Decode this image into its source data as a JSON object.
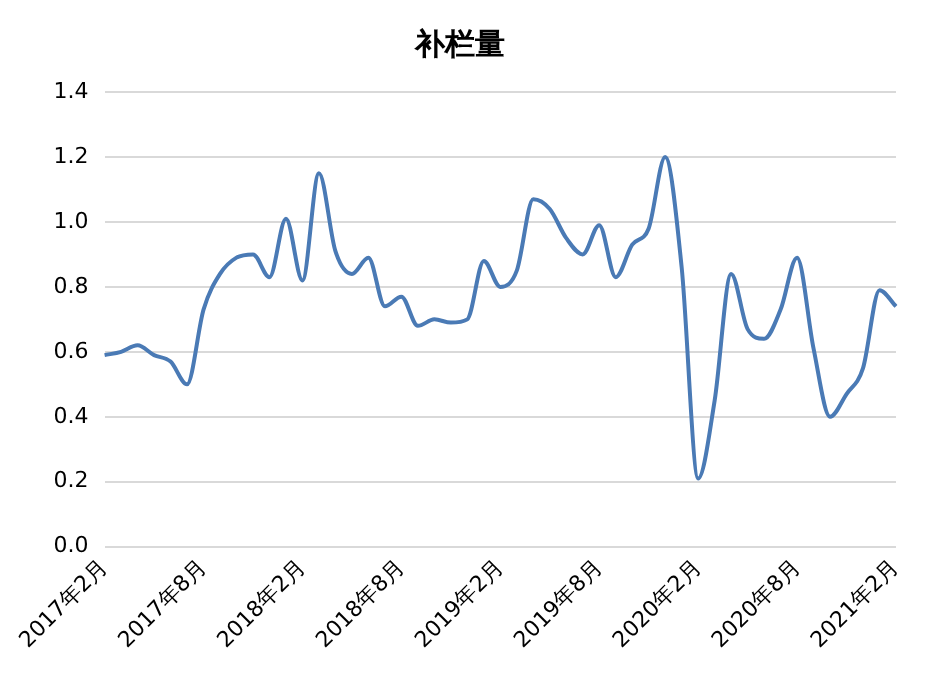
{
  "chart_data": {
    "type": "line",
    "title": "补栏量",
    "categories": [
      "2017年2月",
      null,
      null,
      null,
      null,
      null,
      "2017年8月",
      null,
      null,
      null,
      null,
      null,
      "2018年2月",
      null,
      null,
      null,
      null,
      null,
      "2018年8月",
      null,
      null,
      null,
      null,
      null,
      "2019年2月",
      null,
      null,
      null,
      null,
      null,
      "2019年8月",
      null,
      null,
      null,
      null,
      null,
      "2020年2月",
      null,
      null,
      null,
      null,
      null,
      "2020年8月",
      null,
      null,
      null,
      null,
      null,
      "2021年2月"
    ],
    "series": [
      {
        "color": "#4a7ab5",
        "values": [
          0.59,
          0.6,
          0.62,
          0.59,
          0.57,
          0.5,
          0.73,
          0.84,
          0.89,
          0.9,
          0.83,
          1.01,
          0.82,
          1.15,
          0.91,
          0.84,
          0.89,
          0.74,
          0.77,
          0.68,
          0.7,
          0.69,
          0.7,
          0.88,
          0.8,
          0.85,
          1.07,
          1.04,
          0.95,
          0.9,
          0.99,
          0.83,
          0.93,
          0.98,
          1.2,
          0.86,
          0.21,
          0.45,
          0.84,
          0.67,
          0.64,
          0.73,
          0.89,
          0.61,
          0.4,
          0.47,
          0.55,
          0.79,
          0.74
        ]
      }
    ],
    "ylim": [
      0,
      1.4
    ],
    "yticks": [
      {
        "value": 0,
        "label": "0.0"
      },
      {
        "value": 0.2,
        "label": "0.2"
      },
      {
        "value": 0.4,
        "label": "0.4"
      },
      {
        "value": 0.6,
        "label": "0.6"
      },
      {
        "value": 0.8,
        "label": "0.8"
      },
      {
        "value": 1,
        "label": "1.0"
      },
      {
        "value": 1.2,
        "label": "1.2"
      },
      {
        "value": 1.4,
        "label": "1.4"
      }
    ],
    "grid": "y",
    "legend": false,
    "marker": "none",
    "line_style": "solid"
  }
}
